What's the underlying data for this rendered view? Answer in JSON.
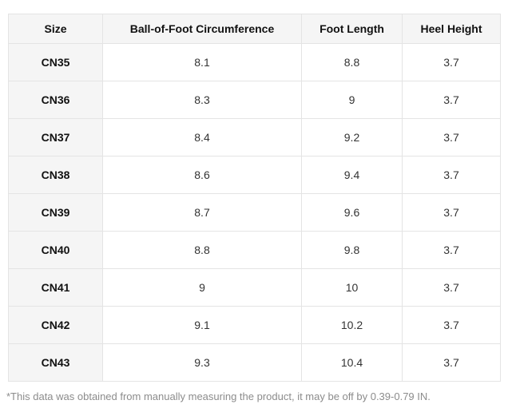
{
  "chart_data": {
    "type": "table",
    "columns": [
      "Size",
      "Ball-of-Foot Circumference",
      "Foot Length",
      "Heel Height"
    ],
    "rows": [
      [
        "CN35",
        "8.1",
        "8.8",
        "3.7"
      ],
      [
        "CN36",
        "8.3",
        "9",
        "3.7"
      ],
      [
        "CN37",
        "8.4",
        "9.2",
        "3.7"
      ],
      [
        "CN38",
        "8.6",
        "9.4",
        "3.7"
      ],
      [
        "CN39",
        "8.7",
        "9.6",
        "3.7"
      ],
      [
        "CN40",
        "8.8",
        "9.8",
        "3.7"
      ],
      [
        "CN41",
        "9",
        "10",
        "3.7"
      ],
      [
        "CN42",
        "9.1",
        "10.2",
        "3.7"
      ],
      [
        "CN43",
        "9.3",
        "10.4",
        "3.7"
      ]
    ],
    "footnote": "*This data was obtained from manually measuring the product, it may be off by 0.39-0.79 IN.",
    "layout": {
      "grid": true,
      "header_position": "top",
      "first_column_is_header": true
    }
  },
  "colors": {
    "header_bg": "#f5f5f5",
    "size_column_bg": "#f5f5f5",
    "border": "#e4e4e4",
    "heading_text": "#111111",
    "value_text": "#333333",
    "footnote_text": "#8c8c8c",
    "page_bg": "#ffffff"
  }
}
